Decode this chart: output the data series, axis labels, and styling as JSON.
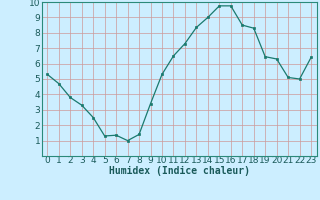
{
  "x": [
    0,
    1,
    2,
    3,
    4,
    5,
    6,
    7,
    8,
    9,
    10,
    11,
    12,
    13,
    14,
    15,
    16,
    17,
    18,
    19,
    20,
    21,
    22,
    23
  ],
  "y": [
    5.3,
    4.7,
    3.8,
    3.3,
    2.5,
    1.3,
    1.35,
    1.0,
    1.4,
    3.4,
    5.3,
    6.5,
    7.3,
    8.35,
    9.0,
    9.75,
    9.75,
    8.5,
    8.3,
    6.45,
    6.3,
    5.1,
    5.0,
    6.4
  ],
  "line_color": "#1a7a6e",
  "marker": "s",
  "marker_size": 2.0,
  "bg_color": "#cceeff",
  "grid_color": "#cc9999",
  "xlabel": "Humidex (Indice chaleur)",
  "xlim": [
    -0.5,
    23.5
  ],
  "ylim": [
    0,
    10
  ],
  "yticks": [
    1,
    2,
    3,
    4,
    5,
    6,
    7,
    8,
    9,
    10
  ],
  "xticks": [
    0,
    1,
    2,
    3,
    4,
    5,
    6,
    7,
    8,
    9,
    10,
    11,
    12,
    13,
    14,
    15,
    16,
    17,
    18,
    19,
    20,
    21,
    22,
    23
  ],
  "xlabel_fontsize": 7,
  "tick_fontsize": 6.5
}
